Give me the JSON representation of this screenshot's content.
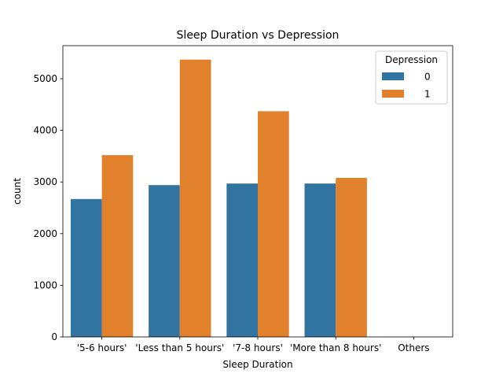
{
  "chart_data": {
    "type": "bar",
    "title": "Sleep Duration vs Depression",
    "xlabel": "Sleep Duration",
    "ylabel": "count",
    "categories": [
      "'5-6 hours'",
      "'Less than 5 hours'",
      "'7-8 hours'",
      "'More than 8 hours'",
      "Others"
    ],
    "series": [
      {
        "name": "0",
        "color": "#3274a1",
        "values": [
          2670,
          2940,
          2970,
          2970,
          4
        ]
      },
      {
        "name": "1",
        "color": "#e1812c",
        "values": [
          3520,
          5370,
          4370,
          3080,
          4
        ]
      }
    ],
    "ylim": [
      0,
      5640
    ],
    "yticks": [
      0,
      1000,
      2000,
      3000,
      4000,
      5000
    ],
    "legend": {
      "title": "Depression",
      "placement": "top-right"
    },
    "grid": false
  }
}
